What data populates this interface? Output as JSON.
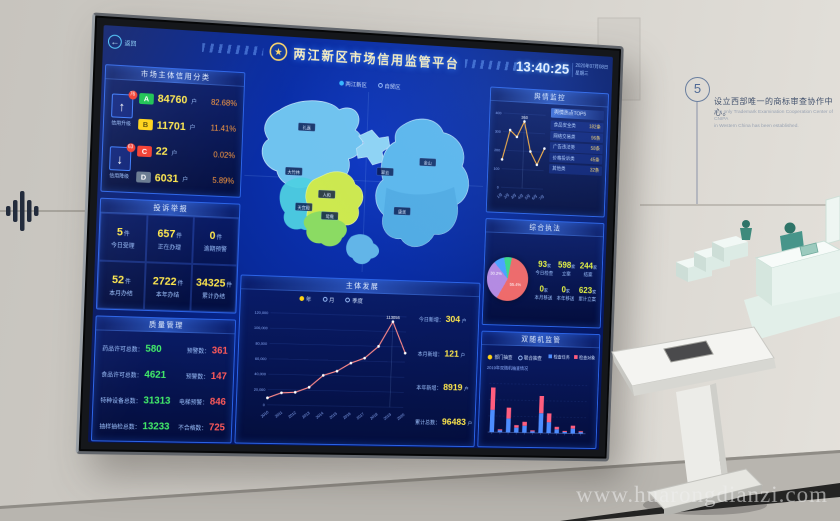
{
  "icons": {
    "back": "←",
    "credit_up": "↑",
    "credit_down": "↓"
  },
  "wall": {
    "step_number": "5",
    "cn": "设立西部唯一的商标审查协作中心。",
    "en1": "The only Trademark Examination Cooperation Center of CNIPA",
    "en2": "in Western China has been established.",
    "watermark": "www.huarongdianzi.com"
  },
  "dashboard": {
    "header": {
      "back": "返回",
      "title": "两江新区市场信用监管平台",
      "time": "13:40:25",
      "date": "2020年07月08日",
      "weekday": "星期三"
    },
    "credit": {
      "title": "市场主体信用分类",
      "up": {
        "badge": "76",
        "caption": "信用升级"
      },
      "down": {
        "badge": "63",
        "caption": "信用降级"
      },
      "rows": [
        {
          "grade": "A",
          "chip": "#17c24f",
          "value": "84760",
          "unit": "户",
          "percent": "82.68%"
        },
        {
          "grade": "B",
          "chip": "#ffd214",
          "value": "11701",
          "unit": "户",
          "percent": "11.41%"
        },
        {
          "grade": "C",
          "chip": "#f43b2e",
          "value": "22",
          "unit": "户",
          "percent": "0.02%"
        },
        {
          "grade": "D",
          "chip": "#66788f",
          "value": "6031",
          "unit": "户",
          "percent": "5.89%"
        }
      ]
    },
    "complaints": {
      "title": "投诉举报",
      "stats": [
        {
          "value": "5",
          "unit": "件",
          "label": "今日受理"
        },
        {
          "value": "657",
          "unit": "件",
          "label": "正在办理"
        },
        {
          "value": "0",
          "unit": "件",
          "label": "逾期预警"
        },
        {
          "value": "52",
          "unit": "件",
          "label": "本月办结"
        },
        {
          "value": "2722",
          "unit": "件",
          "label": "本年办结"
        },
        {
          "value": "34325",
          "unit": "件",
          "label": "累计办结"
        }
      ]
    },
    "quality": {
      "title": "质量管理",
      "rows": [
        {
          "l_label": "药品许可总数",
          "l_value": "580",
          "r_label": "预警数",
          "r_value": "361"
        },
        {
          "l_label": "食品许可总数",
          "l_value": "4621",
          "r_label": "预警数",
          "r_value": "147"
        },
        {
          "l_label": "特种设备总数",
          "l_value": "31313",
          "r_label": "电梯预警",
          "r_value": "846"
        },
        {
          "l_label": "抽样抽检总数",
          "l_value": "13233",
          "r_label": "不合格数",
          "r_value": "725"
        }
      ]
    },
    "map": {
      "radios": [
        {
          "label": "两江新区",
          "color": "#38b6ff",
          "selected": true
        },
        {
          "label": "自贸区",
          "color": "#ffd214",
          "selected": false
        }
      ],
      "chips": [
        "礼嘉",
        "翠云",
        "大竹林",
        "人和",
        "天宫殿",
        "鸳鸯",
        "金山",
        "康美"
      ]
    },
    "development": {
      "title": "主体发展",
      "radios": [
        "年",
        "月",
        "季度"
      ],
      "selected": "年",
      "chart": {
        "type": "line",
        "years": [
          "2010",
          "2011",
          "2012",
          "2013",
          "2014",
          "2015",
          "2016",
          "2017",
          "2018",
          "2019",
          "2020"
        ],
        "values": [
          9000,
          16000,
          17000,
          24000,
          40000,
          46000,
          57000,
          64000,
          80000,
          113056,
          72000
        ],
        "ymax": 120000,
        "yticks": [
          "0",
          "20,000",
          "40,000",
          "60,000",
          "80,000",
          "100,000",
          "120,000"
        ],
        "peak_label": "113056"
      },
      "stats": [
        {
          "label": "今日新增",
          "value": "304",
          "unit": "户"
        },
        {
          "label": "本月新增",
          "value": "121",
          "unit": "户"
        },
        {
          "label": "本年新增",
          "value": "8919",
          "unit": "户"
        },
        {
          "label": "累计总数",
          "value": "96483",
          "unit": "户"
        }
      ]
    },
    "sentiment": {
      "title": "舆情监控",
      "chart": {
        "type": "line",
        "x": [
          "1月",
          "2月",
          "3月",
          "4月",
          "5月",
          "6月",
          "7月"
        ],
        "values": [
          150,
          310,
          275,
          360,
          200,
          130,
          220
        ],
        "ymax": 400,
        "yticks": [
          "0",
          "100",
          "200",
          "300",
          "400"
        ],
        "peak_label": "360"
      },
      "list_header": "舆情热点TOP5",
      "list": [
        {
          "text": "食品安全类",
          "value": "182条"
        },
        {
          "text": "网络交易类",
          "value": "96条"
        },
        {
          "text": "广告违法类",
          "value": "58条"
        },
        {
          "text": "价格投诉类",
          "value": "45条"
        },
        {
          "text": "其他类",
          "value": "32条"
        }
      ]
    },
    "enforcement": {
      "title": "综合执法",
      "pie": [
        {
          "label": "警告",
          "value": 55.4,
          "color": "#ef6a6a"
        },
        {
          "label": "罚款",
          "value": 30.2,
          "color": "#b48ae2"
        },
        {
          "label": "没收",
          "value": 8.3,
          "color": "#4aa3ff"
        },
        {
          "label": "其他",
          "value": 6.1,
          "color": "#3bd98a"
        }
      ],
      "pie_labels": [
        "30.2%",
        "55.4%"
      ],
      "stats": [
        {
          "value": "93",
          "unit": "家",
          "label": "今日检查"
        },
        {
          "value": "598",
          "unit": "家",
          "label": "立案"
        },
        {
          "value": "244",
          "unit": "家",
          "label": "结案"
        },
        {
          "value": "0",
          "unit": "家",
          "label": "本月移送"
        },
        {
          "value": "0",
          "unit": "家",
          "label": "本年移送"
        },
        {
          "value": "623",
          "unit": "家",
          "label": "累计立案"
        }
      ]
    },
    "random": {
      "title": "双随机监管",
      "radios": [
        "部门抽查",
        "联合抽查"
      ],
      "selected": "部门抽查",
      "legend": [
        {
          "label": "检查任务",
          "color": "#4d8dff"
        },
        {
          "label": "检查对象",
          "color": "#ff5d7e"
        }
      ],
      "caption": "2019年双随机抽查情况",
      "chart": {
        "type": "stacked-bar",
        "categories": [
          "1",
          "2",
          "3",
          "4",
          "5",
          "6",
          "7",
          "8",
          "9",
          "10",
          "11",
          "12"
        ],
        "task": [
          45,
          4,
          28,
          10,
          14,
          3,
          40,
          22,
          8,
          3,
          10,
          3
        ],
        "target": [
          45,
          2,
          22,
          5,
          8,
          2,
          35,
          18,
          5,
          2,
          6,
          2
        ],
        "ymax": 100
      }
    }
  }
}
